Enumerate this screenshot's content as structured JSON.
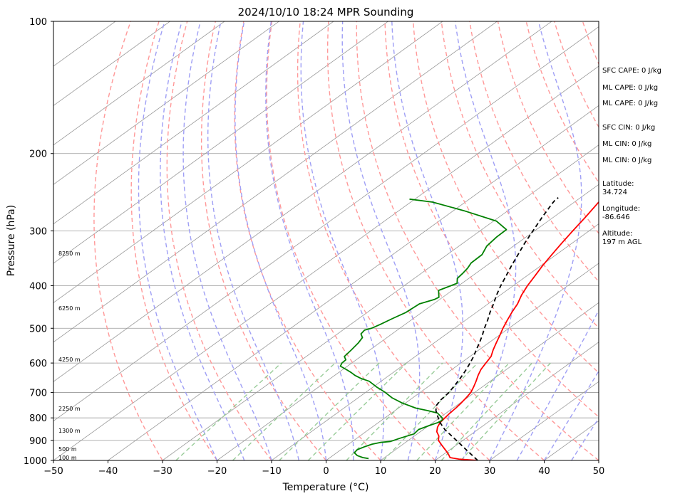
{
  "chart_data": {
    "type": "line",
    "title": "2024/10/10 18:24 MPR Sounding",
    "xlabel": "Temperature (°C)",
    "ylabel": "Pressure (hPa)",
    "xlim": [
      -50,
      50
    ],
    "ylim": [
      1000,
      100
    ],
    "yscale": "log",
    "grid": true,
    "x_ticks": [
      "−50",
      "−40",
      "−30",
      "−20",
      "−10",
      "0",
      "10",
      "20",
      "30",
      "40",
      "50"
    ],
    "y_ticks": [
      "1000",
      "900",
      "800",
      "700",
      "600",
      "500",
      "400",
      "300",
      "200",
      "100"
    ],
    "series": [
      {
        "color": "#ff0000",
        "points": [
          [
            27.8,
            1000
          ],
          [
            24,
            993
          ],
          [
            22,
            985
          ],
          [
            21,
            970
          ],
          [
            19.5,
            950
          ],
          [
            17.5,
            925
          ],
          [
            15.5,
            900
          ],
          [
            14.5,
            880
          ],
          [
            13,
            860
          ],
          [
            12,
            840
          ],
          [
            11.3,
            820
          ],
          [
            11,
            800
          ],
          [
            10.7,
            780
          ],
          [
            10.5,
            760
          ],
          [
            10.2,
            740
          ],
          [
            9.8,
            720
          ],
          [
            9.3,
            700
          ],
          [
            8.4,
            680
          ],
          [
            7.4,
            660
          ],
          [
            6.3,
            640
          ],
          [
            5.3,
            620
          ],
          [
            4.6,
            600
          ],
          [
            3.9,
            580
          ],
          [
            2.6,
            560
          ],
          [
            1.4,
            540
          ],
          [
            0.2,
            520
          ],
          [
            -1.1,
            500
          ],
          [
            -2.3,
            480
          ],
          [
            -3.5,
            460
          ],
          [
            -4.6,
            440
          ],
          [
            -6.1,
            420
          ],
          [
            -7.4,
            400
          ],
          [
            -8.5,
            380
          ],
          [
            -9.7,
            360
          ],
          [
            -10.8,
            340
          ],
          [
            -11.9,
            320
          ],
          [
            -13.0,
            300
          ],
          [
            -14.1,
            280
          ],
          [
            -15.4,
            260
          ],
          [
            -16.6,
            240
          ],
          [
            -17.6,
            220
          ],
          [
            -17.6,
            216
          ]
        ]
      },
      {
        "color": "#008000",
        "points": [
          [
            7.3,
            990
          ],
          [
            6,
            985
          ],
          [
            4.5,
            975
          ],
          [
            3.2,
            960
          ],
          [
            3,
            945
          ],
          [
            3.6,
            930
          ],
          [
            4.3,
            918
          ],
          [
            5.4,
            910
          ],
          [
            7,
            905
          ],
          [
            7.9,
            890
          ],
          [
            9.4,
            870
          ],
          [
            9.1,
            850
          ],
          [
            10.2,
            830
          ],
          [
            10.9,
            820
          ],
          [
            11.1,
            810
          ],
          [
            10.5,
            800
          ],
          [
            8.4,
            780
          ],
          [
            6,
            770
          ],
          [
            3.2,
            760
          ],
          [
            -0.6,
            740
          ],
          [
            -3.8,
            720
          ],
          [
            -6.4,
            700
          ],
          [
            -9.4,
            680
          ],
          [
            -12.2,
            660
          ],
          [
            -14.5,
            650
          ],
          [
            -16.3,
            640
          ],
          [
            -17.8,
            630
          ],
          [
            -19.5,
            620
          ],
          [
            -21.3,
            610
          ],
          [
            -21.8,
            600
          ],
          [
            -21.9,
            590
          ],
          [
            -23.0,
            580
          ],
          [
            -23.2,
            570
          ],
          [
            -23.4,
            560
          ],
          [
            -23.9,
            540
          ],
          [
            -24.5,
            525
          ],
          [
            -25.7,
            515
          ],
          [
            -26.0,
            505
          ],
          [
            -25.2,
            500
          ],
          [
            -24.6,
            490
          ],
          [
            -23.8,
            475
          ],
          [
            -22.9,
            460
          ],
          [
            -22.6,
            440
          ],
          [
            -21.0,
            430
          ],
          [
            -20.7,
            425
          ],
          [
            -22.5,
            410
          ],
          [
            -20.9,
            395
          ],
          [
            -22.1,
            385
          ],
          [
            -22.4,
            375
          ],
          [
            -22.8,
            365
          ],
          [
            -23.5,
            355
          ],
          [
            -23.6,
            340
          ],
          [
            -24.9,
            325
          ],
          [
            -25.4,
            310
          ],
          [
            -25.5,
            298
          ],
          [
            -29.5,
            285
          ],
          [
            -38,
            270
          ],
          [
            -46,
            258
          ],
          [
            -51,
            254
          ]
        ]
      },
      {
        "color": "#000000",
        "dash": "6,4",
        "points": [
          [
            27.8,
            1000
          ],
          [
            23.4,
            950
          ],
          [
            18.8,
            900
          ],
          [
            13.9,
            850
          ],
          [
            11.3,
            820
          ],
          [
            9,
            790
          ],
          [
            7.5,
            770
          ],
          [
            6.3,
            750
          ],
          [
            5.7,
            730
          ],
          [
            5.5,
            715
          ],
          [
            5.3,
            700
          ],
          [
            4.7,
            680
          ],
          [
            4.1,
            660
          ],
          [
            3.4,
            640
          ],
          [
            2.6,
            620
          ],
          [
            1.7,
            600
          ],
          [
            0.7,
            580
          ],
          [
            -0.5,
            560
          ],
          [
            -1.7,
            540
          ],
          [
            -3.0,
            520
          ],
          [
            -4.5,
            500
          ],
          [
            -5.9,
            480
          ],
          [
            -7.5,
            460
          ],
          [
            -9.0,
            440
          ],
          [
            -10.7,
            420
          ],
          [
            -12.3,
            400
          ],
          [
            -13.8,
            380
          ],
          [
            -15.4,
            360
          ],
          [
            -17.0,
            340
          ],
          [
            -18.7,
            320
          ],
          [
            -20.3,
            300
          ],
          [
            -22.0,
            280
          ],
          [
            -23.7,
            260
          ],
          [
            -24.0,
            256
          ],
          [
            -24.1,
            252
          ]
        ]
      }
    ]
  },
  "altitude_labels": [
    "100 m",
    "500 m",
    "1300 m",
    "2250 m",
    "4250 m",
    "6250 m",
    "8250 m"
  ],
  "side_panel": {
    "sfc_cape": "SFC CAPE: 0 J/kg",
    "ml_cape_1": "ML CAPE: 0 J/kg",
    "ml_cape_2": "ML CAPE: 0 J/kg",
    "sfc_cin": "SFC CIN: 0 J/kg",
    "ml_cin_1": "ML CIN: 0 J/kg",
    "ml_cin_2": "ML CIN: 0 J/kg",
    "latitude_label": "Latitude:",
    "latitude_value": "34.724",
    "longitude_label": "Longitude:",
    "longitude_value": "-86.646",
    "altitude_label": "Altitude:",
    "altitude_value": "197 m AGL"
  },
  "colors": {
    "dry_adiabats": "#ff9999",
    "moist_adiabats": "#9f9ff5",
    "mixing_ratio": "#99cc99",
    "isotherms": "#999999"
  }
}
